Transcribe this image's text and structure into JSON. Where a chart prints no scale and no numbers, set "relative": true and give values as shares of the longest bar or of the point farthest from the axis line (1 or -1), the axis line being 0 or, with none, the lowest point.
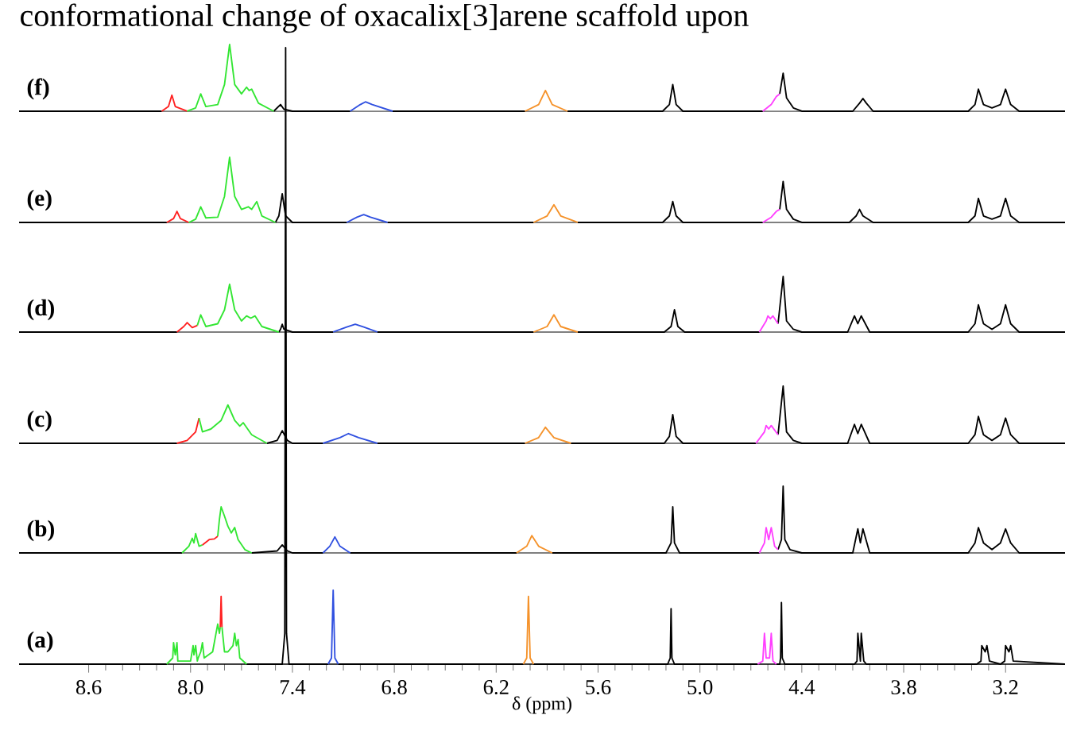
{
  "chart_data": [
    {
      "type": "line",
      "relative": true,
      "title": "conformational change of oxacalix[3]arene scaffold upon",
      "annotations": [
        "(f)"
      ],
      "xlim": [
        9.01,
        2.85
      ],
      "tick_labels": false,
      "series": [
        {
          "color": "#000000",
          "x": [
            9.01,
            8.17,
            8.1,
            7.51,
            7.49,
            7.47,
            7.45,
            7.4,
            7.06,
            6.9,
            6.81,
            6.4,
            6.03,
            5.9,
            5.78,
            5.22,
            5.18,
            5.16,
            5.14,
            5.1,
            4.63,
            4.58,
            4.53,
            4.51,
            4.49,
            4.45,
            4.4,
            4.1,
            4.06,
            4.04,
            4.02,
            3.98,
            3.42,
            3.38,
            3.36,
            3.33,
            3.28,
            3.23,
            3.2,
            3.17,
            3.12,
            2.85
          ],
          "values": [
            0,
            0,
            null,
            0,
            0.05,
            0.1,
            0.03,
            0,
            0,
            null,
            0,
            0,
            0,
            null,
            0,
            0,
            0.1,
            0.4,
            0.1,
            0,
            0,
            null,
            0.26,
            0.57,
            0.2,
            0.05,
            0,
            0,
            0.12,
            0.19,
            0.12,
            0,
            0,
            0.1,
            0.33,
            0.1,
            0.05,
            0.1,
            0.33,
            0.1,
            0,
            0
          ]
        },
        {
          "color": "#ff2020",
          "x": [
            8.17,
            8.13,
            8.11,
            8.09,
            8.02
          ],
          "values": [
            0,
            0.07,
            0.24,
            0.07,
            0
          ]
        },
        {
          "color": "#33e633",
          "x": [
            8.02,
            7.97,
            7.94,
            7.91,
            7.84,
            7.8,
            7.77,
            7.74,
            7.7,
            7.67,
            7.655,
            7.64,
            7.6,
            7.51
          ],
          "values": [
            0,
            0.05,
            0.26,
            0.07,
            0.1,
            0.4,
            1,
            0.4,
            0.26,
            0.36,
            0.31,
            0.33,
            0.12,
            0
          ]
        },
        {
          "color": "#3050e0",
          "x": [
            7.06,
            7.0,
            6.97,
            6.93,
            6.81
          ],
          "values": [
            0,
            0.1,
            0.14,
            0.1,
            0
          ]
        },
        {
          "color": "#f5922a",
          "x": [
            6.03,
            5.95,
            5.91,
            5.87,
            5.78
          ],
          "values": [
            0,
            0.1,
            0.31,
            0.1,
            0
          ]
        },
        {
          "color": "#ff40ff",
          "x": [
            4.63,
            4.58,
            4.55,
            4.53
          ],
          "values": [
            0,
            0.1,
            0.22,
            0.26
          ]
        }
      ]
    },
    {
      "type": "line",
      "relative": true,
      "annotations": [
        "(e)"
      ],
      "xlim": [
        9.01,
        2.85
      ],
      "tick_labels": false,
      "series": [
        {
          "color": "#000000",
          "x": [
            9.01,
            8.14,
            8.1,
            7.5,
            7.48,
            7.46,
            7.44,
            7.4,
            7.08,
            6.9,
            6.84,
            6.4,
            5.98,
            5.9,
            5.72,
            5.22,
            5.18,
            5.16,
            5.14,
            5.1,
            4.63,
            4.58,
            4.53,
            4.51,
            4.49,
            4.45,
            4.4,
            4.12,
            4.08,
            4.06,
            4.04,
            3.98,
            3.42,
            3.38,
            3.36,
            3.33,
            3.28,
            3.23,
            3.2,
            3.17,
            3.12,
            2.85
          ],
          "values": [
            0,
            0,
            null,
            0,
            0.1,
            0.44,
            0.1,
            0,
            0,
            null,
            0,
            0,
            0,
            null,
            0,
            0,
            0.1,
            0.32,
            0.1,
            0,
            0,
            null,
            0.2,
            0.63,
            0.2,
            0.05,
            0,
            0,
            0.1,
            0.2,
            0.1,
            0,
            0,
            0.1,
            0.37,
            0.1,
            0.05,
            0.1,
            0.37,
            0.1,
            0,
            0
          ]
        },
        {
          "color": "#ff2020",
          "x": [
            8.14,
            8.1,
            8.08,
            8.06,
            8.01
          ],
          "values": [
            0,
            0.06,
            0.17,
            0.06,
            0
          ]
        },
        {
          "color": "#33e633",
          "x": [
            8.01,
            7.97,
            7.94,
            7.91,
            7.84,
            7.8,
            7.77,
            7.74,
            7.7,
            7.66,
            7.64,
            7.61,
            7.58,
            7.5
          ],
          "values": [
            0,
            0.05,
            0.24,
            0.07,
            0.08,
            0.4,
            1,
            0.4,
            0.2,
            0.24,
            0.2,
            0.32,
            0.1,
            0
          ]
        },
        {
          "color": "#3050e0",
          "x": [
            7.08,
            7.02,
            6.98,
            6.94,
            6.84
          ],
          "values": [
            0,
            0.08,
            0.12,
            0.08,
            0
          ]
        },
        {
          "color": "#f5922a",
          "x": [
            5.98,
            5.9,
            5.86,
            5.82,
            5.72
          ],
          "values": [
            0,
            0.1,
            0.27,
            0.1,
            0
          ]
        },
        {
          "color": "#ff40ff",
          "x": [
            4.63,
            4.58,
            4.55,
            4.53
          ],
          "values": [
            0,
            0.08,
            0.17,
            0.2
          ]
        }
      ]
    },
    {
      "type": "line",
      "relative": true,
      "annotations": [
        "(d)"
      ],
      "xlim": [
        9.01,
        2.85
      ],
      "tick_labels": false,
      "series": [
        {
          "color": "#000000",
          "x": [
            9.01,
            8.08,
            8.0,
            7.48,
            7.47,
            7.46,
            7.45,
            7.4,
            7.16,
            7.0,
            6.9,
            6.4,
            5.98,
            5.9,
            5.72,
            5.21,
            5.17,
            5.15,
            5.13,
            5.09,
            4.65,
            4.6,
            4.54,
            4.51,
            4.49,
            4.45,
            4.4,
            4.13,
            4.09,
            4.07,
            4.05,
            4.0,
            3.42,
            3.38,
            3.36,
            3.33,
            3.28,
            3.23,
            3.2,
            3.17,
            3.12,
            2.85
          ],
          "values": [
            0,
            0,
            null,
            0,
            0.05,
            0.14,
            0.05,
            0,
            0,
            null,
            0,
            0,
            0,
            null,
            0,
            0,
            0.1,
            0.4,
            0.1,
            0,
            0,
            null,
            0.15,
            1,
            0.2,
            0.05,
            0,
            0,
            0.29,
            0.15,
            0.29,
            0,
            0,
            0.15,
            0.49,
            0.15,
            0.05,
            0.15,
            0.49,
            0.15,
            0,
            0
          ]
        },
        {
          "color": "#ff2020",
          "x": [
            8.08,
            8.04,
            8.02,
            7.99,
            7.96
          ],
          "values": [
            0,
            0.1,
            0.17,
            0.08,
            0.12
          ]
        },
        {
          "color": "#33e633",
          "x": [
            7.96,
            7.94,
            7.91,
            7.84,
            7.8,
            7.77,
            7.74,
            7.7,
            7.67,
            7.645,
            7.62,
            7.58,
            7.48
          ],
          "values": [
            0.12,
            0.31,
            0.1,
            0.15,
            0.4,
            0.86,
            0.4,
            0.2,
            0.29,
            0.25,
            0.29,
            0.1,
            0
          ]
        },
        {
          "color": "#3050e0",
          "x": [
            7.16,
            7.08,
            7.03,
            6.98,
            6.9
          ],
          "values": [
            0,
            0.09,
            0.14,
            0.09,
            0
          ]
        },
        {
          "color": "#f5922a",
          "x": [
            5.98,
            5.9,
            5.86,
            5.82,
            5.72
          ],
          "values": [
            0,
            0.1,
            0.31,
            0.1,
            0
          ]
        },
        {
          "color": "#ff40ff",
          "x": [
            4.65,
            4.61,
            4.6,
            4.585,
            4.57,
            4.54
          ],
          "values": [
            0,
            0.2,
            0.29,
            0.24,
            0.29,
            0.15
          ]
        }
      ]
    },
    {
      "type": "line",
      "relative": true,
      "annotations": [
        "(c)"
      ],
      "xlim": [
        9.01,
        2.85
      ],
      "tick_labels": false,
      "series": [
        {
          "color": "#000000",
          "x": [
            9.01,
            8.08,
            8.0,
            7.55,
            7.49,
            7.46,
            7.43,
            7.4,
            7.22,
            7.1,
            6.9,
            6.4,
            6.03,
            5.9,
            5.76,
            5.21,
            5.18,
            5.16,
            5.14,
            5.1,
            4.67,
            4.6,
            4.54,
            4.51,
            4.49,
            4.45,
            4.4,
            4.13,
            4.09,
            4.07,
            4.05,
            4.0,
            3.42,
            3.38,
            3.36,
            3.33,
            3.28,
            3.23,
            3.2,
            3.17,
            3.12,
            2.85
          ],
          "values": [
            0,
            0,
            null,
            0,
            0.05,
            0.22,
            0.05,
            0,
            0,
            null,
            0,
            0,
            0,
            null,
            0,
            0,
            0.12,
            0.5,
            0.12,
            0,
            0,
            null,
            0.15,
            1,
            0.2,
            0.05,
            0,
            0,
            0.33,
            0.17,
            0.33,
            0,
            0,
            0.15,
            0.47,
            0.15,
            0.05,
            0.15,
            0.44,
            0.15,
            0,
            0
          ]
        },
        {
          "color": "#ff2020",
          "x": [
            8.08,
            8.02,
            7.97,
            7.95
          ],
          "values": [
            0,
            0.05,
            0.2,
            0.44
          ]
        },
        {
          "color": "#33e633",
          "x": [
            7.95,
            7.93,
            7.88,
            7.82,
            7.78,
            7.74,
            7.71,
            7.69,
            7.64,
            7.55
          ],
          "values": [
            0.44,
            0.2,
            0.25,
            0.4,
            0.67,
            0.4,
            0.3,
            0.36,
            0.15,
            0
          ]
        },
        {
          "color": "#3050e0",
          "x": [
            7.22,
            7.12,
            7.07,
            7.01,
            6.9
          ],
          "values": [
            0,
            0.1,
            0.17,
            0.1,
            0
          ]
        },
        {
          "color": "#f5922a",
          "x": [
            6.03,
            5.95,
            5.91,
            5.86,
            5.76
          ],
          "values": [
            0,
            0.1,
            0.28,
            0.1,
            0
          ]
        },
        {
          "color": "#ff40ff",
          "x": [
            4.67,
            4.62,
            4.61,
            4.595,
            4.58,
            4.54
          ],
          "values": [
            0,
            0.2,
            0.31,
            0.25,
            0.31,
            0.15
          ]
        }
      ]
    },
    {
      "type": "line",
      "relative": true,
      "annotations": [
        "(b)"
      ],
      "xlim": [
        9.01,
        2.85
      ],
      "tick_labels": false,
      "series": [
        {
          "color": "#000000",
          "x": [
            9.01,
            8.05,
            8.0,
            7.64,
            7.49,
            7.46,
            7.43,
            7.4,
            7.22,
            7.1,
            7.06,
            6.4,
            6.08,
            5.9,
            5.87,
            5.2,
            5.17,
            5.16,
            5.15,
            5.12,
            4.65,
            4.6,
            4.54,
            4.52,
            4.51,
            4.5,
            4.47,
            4.4,
            4.1,
            4.07,
            4.055,
            4.04,
            4.0,
            3.42,
            3.38,
            3.36,
            3.33,
            3.28,
            3.23,
            3.2,
            3.17,
            3.12,
            2.85
          ],
          "values": [
            0,
            0,
            null,
            0,
            0.03,
            0.12,
            0.03,
            0,
            0,
            null,
            0,
            0,
            0,
            null,
            0,
            0,
            0.15,
            0.69,
            0.15,
            0,
            0,
            null,
            0.05,
            0.2,
            1,
            0.2,
            0.05,
            0,
            0,
            0.36,
            0.15,
            0.36,
            0,
            0,
            0.15,
            0.38,
            0.15,
            0.05,
            0.15,
            0.36,
            0.15,
            0,
            0
          ]
        },
        {
          "color": "#33e633",
          "x": [
            8.05,
            8.01,
            7.99,
            7.98,
            7.97,
            7.95,
            7.93
          ],
          "values": [
            0,
            0.1,
            0.22,
            0.15,
            0.29,
            0.1,
            0.12
          ]
        },
        {
          "color": "#ff2020",
          "x": [
            7.93,
            7.89,
            7.86,
            7.84
          ],
          "values": [
            0.12,
            0.2,
            0.21,
            0.25
          ]
        },
        {
          "color": "#33e633",
          "x": [
            7.84,
            7.83,
            7.82,
            7.8,
            7.78,
            7.76,
            7.74,
            7.72,
            7.68,
            7.64
          ],
          "values": [
            0.25,
            0.5,
            0.69,
            0.55,
            0.4,
            0.3,
            0.38,
            0.2,
            0.05,
            0
          ]
        },
        {
          "color": "#3050e0",
          "x": [
            7.22,
            7.18,
            7.15,
            7.12,
            7.06
          ],
          "values": [
            0,
            0.1,
            0.24,
            0.1,
            0
          ]
        },
        {
          "color": "#f5922a",
          "x": [
            6.08,
            6.02,
            5.99,
            5.95,
            5.87
          ],
          "values": [
            0,
            0.1,
            0.26,
            0.1,
            0
          ]
        },
        {
          "color": "#ff40ff",
          "x": [
            4.65,
            4.62,
            4.61,
            4.595,
            4.58,
            4.56,
            4.54
          ],
          "values": [
            0,
            0.15,
            0.38,
            0.2,
            0.38,
            0.1,
            0.05
          ]
        }
      ]
    },
    {
      "type": "line",
      "relative": true,
      "annotations": [
        "(a)"
      ],
      "xlabel": "δ (ppm)",
      "xlim": [
        9.01,
        2.85
      ],
      "xticks": [
        8.6,
        {
          "value": 8.0,
          "label": "8.0"
        },
        7.4,
        6.8,
        6.2,
        5.6,
        {
          "value": 5.0,
          "label": "5.0"
        },
        4.4,
        3.8,
        3.2
      ],
      "tick_labels": "x",
      "series": [
        {
          "color": "#000000",
          "x": [
            9.01,
            8.14,
            8.0,
            7.67,
            7.46,
            7.445,
            7.44,
            7.435,
            7.42,
            7.19,
            7.16,
            7.13,
            6.5,
            6.04,
            6.01,
            5.98,
            5.19,
            5.175,
            5.17,
            5.165,
            5.15,
            4.66,
            4.6,
            4.55,
            4.53,
            4.525,
            4.52,
            4.515,
            4.5,
            4.09,
            4.075,
            4.07,
            4.055,
            4.05,
            4.035,
            4.02,
            3.37,
            3.345,
            3.34,
            3.32,
            3.31,
            3.295,
            3.23,
            3.205,
            3.2,
            3.18,
            3.17,
            3.155,
            2.85
          ],
          "values": [
            0,
            0,
            null,
            0,
            0,
            0.05,
            1,
            0.05,
            0,
            0,
            null,
            0,
            0,
            0,
            null,
            0,
            0,
            0.01,
            0.09,
            0.01,
            0,
            0,
            null,
            0,
            0,
            0.01,
            0.1,
            0.01,
            0,
            0,
            0.005,
            0.05,
            0.005,
            0.05,
            0.005,
            0,
            0,
            0.005,
            0.03,
            0.02,
            0.03,
            0.005,
            0,
            0.005,
            0.03,
            0.02,
            0.03,
            0.005,
            0
          ]
        },
        {
          "color": "#33e633",
          "x": [
            8.14,
            8.105,
            8.1,
            8.09,
            8.08,
            8.075,
            8.0,
            7.985,
            7.98,
            7.97,
            7.96,
            7.955,
            7.94,
            7.93,
            7.92,
            7.87,
            7.85,
            7.84,
            7.83,
            7.825
          ],
          "values": [
            0,
            0.01,
            0.035,
            0.015,
            0.035,
            0.005,
            0.005,
            0.03,
            0.015,
            0.03,
            0.005,
            0.01,
            0.02,
            0.035,
            0.01,
            0.02,
            0.05,
            0.065,
            0.05,
            0.06
          ]
        },
        {
          "color": "#ff2020",
          "x": [
            7.825,
            7.82,
            7.815
          ],
          "values": [
            0.06,
            0.11,
            0.06
          ]
        },
        {
          "color": "#33e633",
          "x": [
            7.815,
            7.8,
            7.78,
            7.75,
            7.74,
            7.73,
            7.72,
            7.71,
            7.67
          ],
          "values": [
            0.06,
            0.02,
            0.02,
            0.03,
            0.05,
            0.03,
            0.04,
            0.01,
            0
          ]
        },
        {
          "color": "#3050e0",
          "x": [
            7.19,
            7.17,
            7.16,
            7.15,
            7.13
          ],
          "values": [
            0,
            0.01,
            0.12,
            0.01,
            0
          ]
        },
        {
          "color": "#f5922a",
          "x": [
            6.04,
            6.02,
            6.01,
            6.0,
            5.98
          ],
          "values": [
            0,
            0.01,
            0.11,
            0.01,
            0
          ]
        },
        {
          "color": "#ff40ff",
          "x": [
            4.66,
            4.63,
            4.62,
            4.61,
            4.59,
            4.58,
            4.57,
            4.55
          ],
          "values": [
            0,
            0.005,
            0.05,
            0.01,
            0.01,
            0.05,
            0.005,
            0
          ]
        }
      ]
    }
  ]
}
